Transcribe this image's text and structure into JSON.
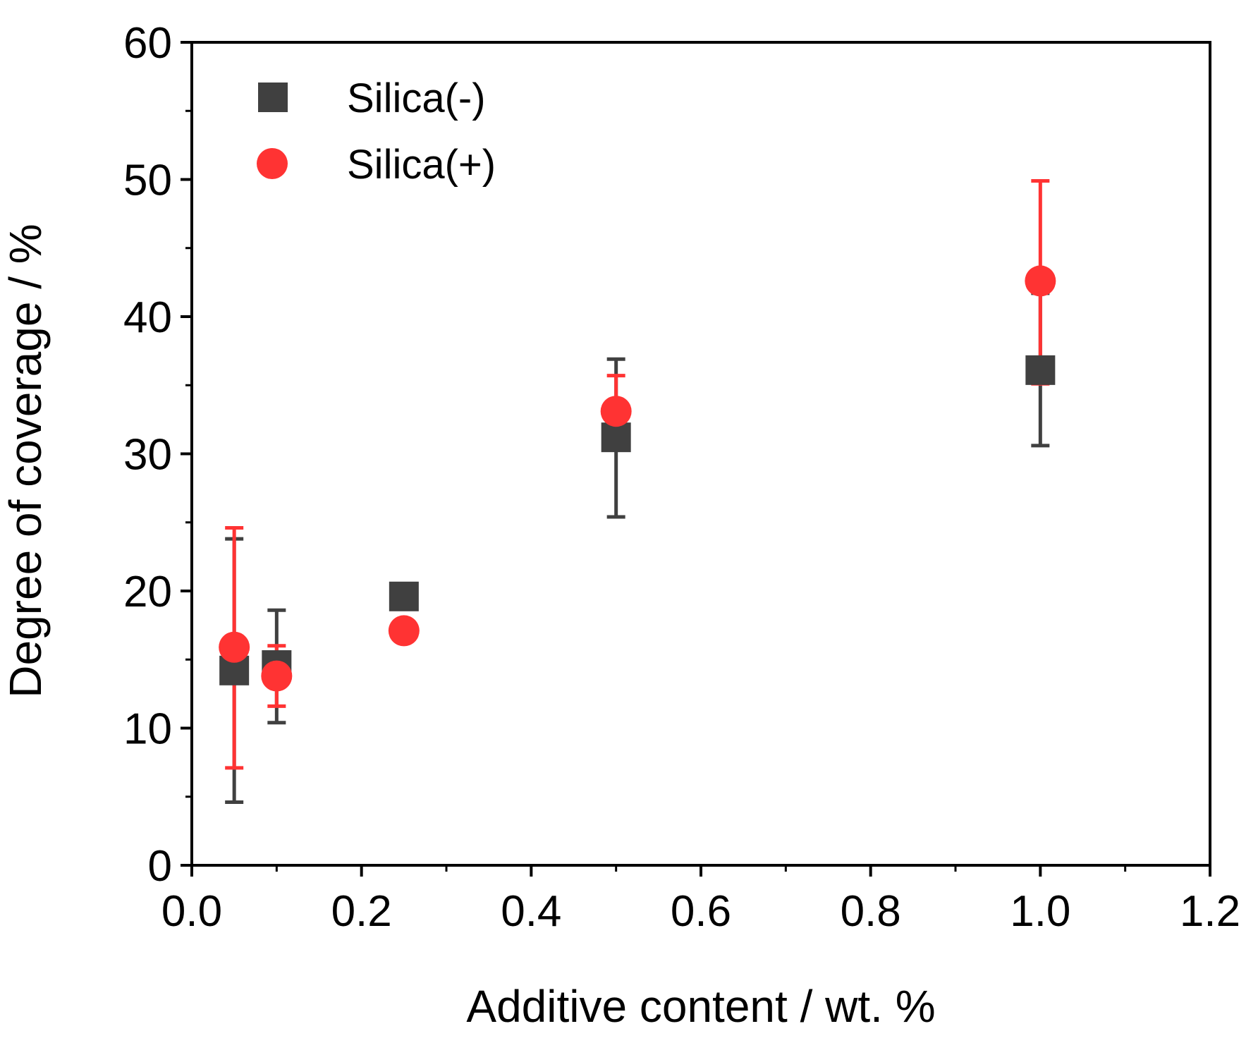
{
  "chart_data": {
    "type": "scatter",
    "title": "",
    "xlabel": "Additive content / wt. %",
    "ylabel": "Degree of coverage / %",
    "xlim": [
      0.0,
      1.2
    ],
    "ylim": [
      0,
      60
    ],
    "xticks": [
      0.0,
      0.2,
      0.4,
      0.6,
      0.8,
      1.0,
      1.2
    ],
    "xtick_labels": [
      "0.0",
      "0.2",
      "0.4",
      "0.6",
      "0.8",
      "1.0",
      "1.2"
    ],
    "yticks": [
      0,
      10,
      20,
      30,
      40,
      50,
      60
    ],
    "ytick_labels": [
      "0",
      "10",
      "20",
      "30",
      "40",
      "50",
      "60"
    ],
    "legend_position": "top-left",
    "series": [
      {
        "name": "Silica(-)",
        "marker": "square",
        "color": "#404040",
        "points": [
          {
            "x": 0.05,
            "y": 14.2,
            "yerr_low": 4.6,
            "yerr_high": 23.8
          },
          {
            "x": 0.1,
            "y": 14.6,
            "yerr_low": 10.4,
            "yerr_high": 18.6
          },
          {
            "x": 0.25,
            "y": 19.6,
            "yerr_low": 19.0,
            "yerr_high": 20.3
          },
          {
            "x": 0.5,
            "y": 31.2,
            "yerr_low": 25.4,
            "yerr_high": 36.9
          },
          {
            "x": 1.0,
            "y": 36.1,
            "yerr_low": 30.6,
            "yerr_high": 41.7
          }
        ]
      },
      {
        "name": "Silica(+)",
        "marker": "circle",
        "color": "#ff3333",
        "points": [
          {
            "x": 0.05,
            "y": 15.9,
            "yerr_low": 7.1,
            "yerr_high": 24.6
          },
          {
            "x": 0.1,
            "y": 13.8,
            "yerr_low": 11.6,
            "yerr_high": 16.0
          },
          {
            "x": 0.25,
            "y": 17.1,
            "yerr_low": 16.6,
            "yerr_high": 17.6
          },
          {
            "x": 0.5,
            "y": 33.1,
            "yerr_low": 30.6,
            "yerr_high": 35.7
          },
          {
            "x": 1.0,
            "y": 42.6,
            "yerr_low": 35.1,
            "yerr_high": 49.9
          }
        ]
      }
    ]
  }
}
